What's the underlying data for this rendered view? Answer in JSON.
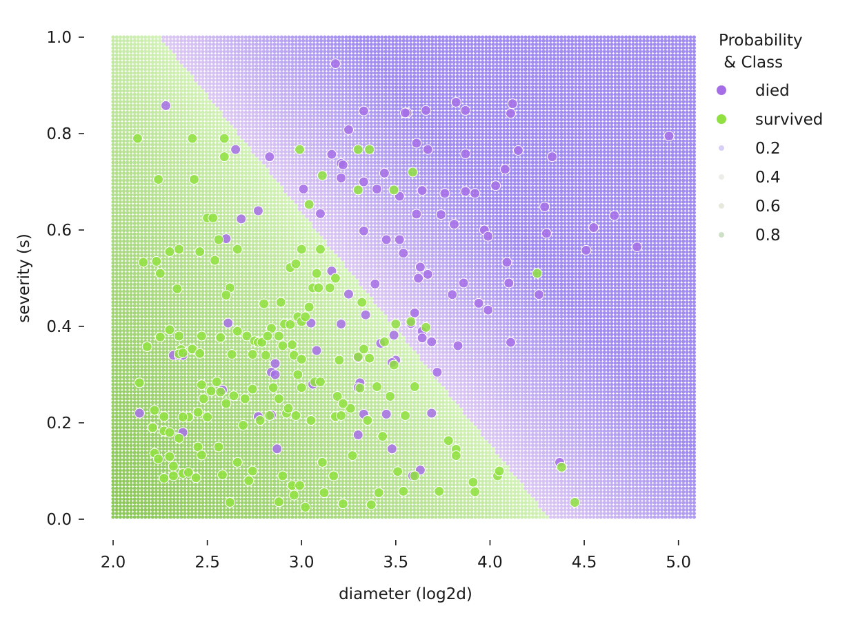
{
  "chart_data": {
    "type": "scatter",
    "title": "",
    "xlabel": "diameter (log2d)",
    "ylabel": "severity (s)",
    "xlim": [
      2.0,
      5.1
    ],
    "ylim": [
      0.0,
      1.0
    ],
    "xticks": [
      "2.0",
      "2.5",
      "3.0",
      "3.5",
      "4.0",
      "4.5",
      "5.0"
    ],
    "xtick_values": [
      2.0,
      2.5,
      3.0,
      3.5,
      4.0,
      4.5,
      5.0
    ],
    "yticks": [
      "0.0",
      "0.2",
      "0.4",
      "0.6",
      "0.8",
      "1.0"
    ],
    "ytick_values": [
      0.0,
      0.2,
      0.4,
      0.6,
      0.8,
      1.0
    ],
    "grid": false,
    "background": {
      "type": "probability_grid",
      "boundary": {
        "description": "p(survived)=0.5 line",
        "points": [
          [
            2.25,
            1.0
          ],
          [
            4.32,
            0.0
          ]
        ]
      },
      "colors": {
        "survived": "#8dc85a",
        "survived_light": "#d3f2b8",
        "died_light": "#dcc8f2",
        "died": "#a08cf0"
      }
    },
    "legend": {
      "title": "Probability\n & Class",
      "title_lines": [
        "Probability",
        " & Class"
      ],
      "placement": "outside-right",
      "classes": [
        {
          "label": "died",
          "color": "#a66ee6"
        },
        {
          "label": "survived",
          "color": "#8fe040"
        }
      ],
      "probabilities": [
        {
          "label": "0.2",
          "color": "#d8d0f4"
        },
        {
          "label": "0.4",
          "color": "#ecece8"
        },
        {
          "label": "0.6",
          "color": "#e6eadc"
        },
        {
          "label": "0.8",
          "color": "#cfe0c8"
        }
      ]
    },
    "series": [
      {
        "name": "died",
        "color": "#a66ee6",
        "points": [
          [
            3.18,
            0.945
          ],
          [
            2.28,
            0.858
          ],
          [
            3.33,
            0.847
          ],
          [
            3.56,
            0.843
          ],
          [
            3.55,
            0.843
          ],
          [
            3.66,
            0.848
          ],
          [
            3.82,
            0.865
          ],
          [
            3.87,
            0.848
          ],
          [
            4.12,
            0.862
          ],
          [
            4.11,
            0.842
          ],
          [
            3.25,
            0.808
          ],
          [
            3.61,
            0.78
          ],
          [
            4.95,
            0.795
          ],
          [
            3.67,
            0.767
          ],
          [
            3.87,
            0.758
          ],
          [
            4.15,
            0.765
          ],
          [
            2.65,
            0.767
          ],
          [
            2.83,
            0.752
          ],
          [
            3.16,
            0.757
          ],
          [
            4.33,
            0.752
          ],
          [
            3.21,
            0.738
          ],
          [
            3.22,
            0.735
          ],
          [
            3.21,
            0.708
          ],
          [
            3.44,
            0.718
          ],
          [
            3.33,
            0.7
          ],
          [
            4.08,
            0.726
          ],
          [
            4.03,
            0.692
          ],
          [
            3.64,
            0.682
          ],
          [
            3.4,
            0.685
          ],
          [
            3.52,
            0.67
          ],
          [
            3.76,
            0.676
          ],
          [
            3.87,
            0.68
          ],
          [
            3.92,
            0.676
          ],
          [
            3.01,
            0.685
          ],
          [
            4.29,
            0.648
          ],
          [
            4.66,
            0.63
          ],
          [
            3.1,
            0.634
          ],
          [
            2.77,
            0.64
          ],
          [
            3.74,
            0.632
          ],
          [
            3.61,
            0.633
          ],
          [
            2.68,
            0.623
          ],
          [
            3.81,
            0.612
          ],
          [
            4.55,
            0.605
          ],
          [
            3.33,
            0.598
          ],
          [
            3.97,
            0.6
          ],
          [
            4.3,
            0.593
          ],
          [
            3.99,
            0.587
          ],
          [
            2.6,
            0.582
          ],
          [
            3.45,
            0.58
          ],
          [
            3.52,
            0.58
          ],
          [
            4.51,
            0.558
          ],
          [
            4.78,
            0.565
          ],
          [
            3.54,
            0.552
          ],
          [
            4.09,
            0.533
          ],
          [
            3.63,
            0.523
          ],
          [
            3.16,
            0.515
          ],
          [
            3.67,
            0.508
          ],
          [
            3.62,
            0.5
          ],
          [
            3.86,
            0.49
          ],
          [
            3.39,
            0.488
          ],
          [
            4.1,
            0.49
          ],
          [
            3.8,
            0.466
          ],
          [
            3.25,
            0.467
          ],
          [
            4.26,
            0.466
          ],
          [
            3.94,
            0.448
          ],
          [
            3.99,
            0.434
          ],
          [
            3.6,
            0.428
          ],
          [
            3.34,
            0.424
          ],
          [
            3.05,
            0.407
          ],
          [
            3.21,
            0.405
          ],
          [
            2.61,
            0.407
          ],
          [
            3.58,
            0.406
          ],
          [
            3.64,
            0.39
          ],
          [
            3.49,
            0.382
          ],
          [
            3.69,
            0.368
          ],
          [
            3.64,
            0.376
          ],
          [
            3.83,
            0.36
          ],
          [
            3.42,
            0.365
          ],
          [
            4.11,
            0.367
          ],
          [
            3.08,
            0.35
          ],
          [
            2.32,
            0.34
          ],
          [
            2.35,
            0.34
          ],
          [
            2.37,
            0.34
          ],
          [
            3.5,
            0.33
          ],
          [
            3.3,
            0.335
          ],
          [
            3.48,
            0.325
          ],
          [
            2.86,
            0.323
          ],
          [
            3.72,
            0.305
          ],
          [
            2.84,
            0.305
          ],
          [
            2.86,
            0.3
          ],
          [
            2.58,
            0.268
          ],
          [
            3.31,
            0.283
          ],
          [
            3.06,
            0.28
          ],
          [
            3.3,
            0.273
          ],
          [
            3.33,
            0.218
          ],
          [
            3.45,
            0.218
          ],
          [
            2.84,
            0.216
          ],
          [
            3.69,
            0.22
          ],
          [
            2.14,
            0.22
          ],
          [
            2.77,
            0.213
          ],
          [
            2.37,
            0.18
          ],
          [
            3.3,
            0.175
          ],
          [
            2.87,
            0.146
          ],
          [
            3.48,
            0.146
          ],
          [
            4.37,
            0.118
          ],
          [
            3.63,
            0.102
          ],
          [
            3.59,
            0.09
          ]
        ]
      },
      {
        "name": "survived",
        "color": "#8fe040",
        "points": [
          [
            2.13,
            0.79
          ],
          [
            2.42,
            0.79
          ],
          [
            2.59,
            0.79
          ],
          [
            2.59,
            0.752
          ],
          [
            2.24,
            0.705
          ],
          [
            2.43,
            0.705
          ],
          [
            3.3,
            0.767
          ],
          [
            3.36,
            0.767
          ],
          [
            2.99,
            0.767
          ],
          [
            3.59,
            0.72
          ],
          [
            3.11,
            0.713
          ],
          [
            3.3,
            0.683
          ],
          [
            3.49,
            0.683
          ],
          [
            3.04,
            0.653
          ],
          [
            2.5,
            0.625
          ],
          [
            2.53,
            0.625
          ],
          [
            3.0,
            0.56
          ],
          [
            3.1,
            0.56
          ],
          [
            2.3,
            0.555
          ],
          [
            2.35,
            0.56
          ],
          [
            2.46,
            0.555
          ],
          [
            2.56,
            0.58
          ],
          [
            2.66,
            0.56
          ],
          [
            2.54,
            0.537
          ],
          [
            2.23,
            0.535
          ],
          [
            2.16,
            0.533
          ],
          [
            2.25,
            0.51
          ],
          [
            3.08,
            0.51
          ],
          [
            3.18,
            0.5
          ],
          [
            2.62,
            0.48
          ],
          [
            2.34,
            0.478
          ],
          [
            3.06,
            0.48
          ],
          [
            3.09,
            0.48
          ],
          [
            3.15,
            0.48
          ],
          [
            2.6,
            0.465
          ],
          [
            3.32,
            0.45
          ],
          [
            3.04,
            0.44
          ],
          [
            2.8,
            0.447
          ],
          [
            2.89,
            0.45
          ],
          [
            2.94,
            0.522
          ],
          [
            2.97,
            0.53
          ],
          [
            2.25,
            0.378
          ],
          [
            2.3,
            0.393
          ],
          [
            2.35,
            0.38
          ],
          [
            2.47,
            0.38
          ],
          [
            2.57,
            0.377
          ],
          [
            2.66,
            0.39
          ],
          [
            2.71,
            0.38
          ],
          [
            2.75,
            0.37
          ],
          [
            2.77,
            0.367
          ],
          [
            2.79,
            0.367
          ],
          [
            2.84,
            0.396
          ],
          [
            2.88,
            0.38
          ],
          [
            2.91,
            0.405
          ],
          [
            2.94,
            0.404
          ],
          [
            2.98,
            0.42
          ],
          [
            3.0,
            0.41
          ],
          [
            3.02,
            0.42
          ],
          [
            2.82,
            0.38
          ],
          [
            2.9,
            0.36
          ],
          [
            2.95,
            0.362
          ],
          [
            2.36,
            0.352
          ],
          [
            2.42,
            0.353
          ],
          [
            2.18,
            0.358
          ],
          [
            2.35,
            0.343
          ],
          [
            2.37,
            0.345
          ],
          [
            2.46,
            0.344
          ],
          [
            2.63,
            0.342
          ],
          [
            2.74,
            0.342
          ],
          [
            2.81,
            0.34
          ],
          [
            2.96,
            0.34
          ],
          [
            3.0,
            0.332
          ],
          [
            3.2,
            0.33
          ],
          [
            3.3,
            0.337
          ],
          [
            3.33,
            0.353
          ],
          [
            3.36,
            0.334
          ],
          [
            3.44,
            0.368
          ],
          [
            3.5,
            0.405
          ],
          [
            3.58,
            0.41
          ],
          [
            3.66,
            0.398
          ],
          [
            3.07,
            0.285
          ],
          [
            3.1,
            0.285
          ],
          [
            2.55,
            0.285
          ],
          [
            2.47,
            0.279
          ],
          [
            2.52,
            0.266
          ],
          [
            2.57,
            0.264
          ],
          [
            2.64,
            0.256
          ],
          [
            2.6,
            0.24
          ],
          [
            2.48,
            0.25
          ],
          [
            2.45,
            0.222
          ],
          [
            2.5,
            0.212
          ],
          [
            2.4,
            0.212
          ],
          [
            2.37,
            0.212
          ],
          [
            2.27,
            0.213
          ],
          [
            2.22,
            0.226
          ],
          [
            2.14,
            0.283
          ],
          [
            2.21,
            0.19
          ],
          [
            2.27,
            0.183
          ],
          [
            2.3,
            0.18
          ],
          [
            2.35,
            0.168
          ],
          [
            2.45,
            0.15
          ],
          [
            2.56,
            0.15
          ],
          [
            2.69,
            0.195
          ],
          [
            2.78,
            0.205
          ],
          [
            2.83,
            0.215
          ],
          [
            2.92,
            0.22
          ],
          [
            2.97,
            0.215
          ],
          [
            3.05,
            0.205
          ],
          [
            3.18,
            0.213
          ],
          [
            3.21,
            0.215
          ],
          [
            3.26,
            0.23
          ],
          [
            3.31,
            0.272
          ],
          [
            3.4,
            0.275
          ],
          [
            3.47,
            0.255
          ],
          [
            3.35,
            0.205
          ],
          [
            3.43,
            0.172
          ],
          [
            3.6,
            0.275
          ],
          [
            3.49,
            0.32
          ],
          [
            3.19,
            0.255
          ],
          [
            3.22,
            0.24
          ],
          [
            2.22,
            0.137
          ],
          [
            2.24,
            0.125
          ],
          [
            2.27,
            0.085
          ],
          [
            2.32,
            0.09
          ],
          [
            2.32,
            0.11
          ],
          [
            2.37,
            0.095
          ],
          [
            2.4,
            0.097
          ],
          [
            2.44,
            0.086
          ],
          [
            2.47,
            0.133
          ],
          [
            2.58,
            0.092
          ],
          [
            2.62,
            0.035
          ],
          [
            2.66,
            0.118
          ],
          [
            2.72,
            0.08
          ],
          [
            2.74,
            0.1
          ],
          [
            2.88,
            0.036
          ],
          [
            2.9,
            0.09
          ],
          [
            2.95,
            0.07
          ],
          [
            2.96,
            0.05
          ],
          [
            2.99,
            0.07
          ],
          [
            3.02,
            0.025
          ],
          [
            3.11,
            0.118
          ],
          [
            3.12,
            0.055
          ],
          [
            3.17,
            0.09
          ],
          [
            3.22,
            0.032
          ],
          [
            3.27,
            0.132
          ],
          [
            3.37,
            0.03
          ],
          [
            3.41,
            0.055
          ],
          [
            3.51,
            0.099
          ],
          [
            3.54,
            0.058
          ],
          [
            3.6,
            0.09
          ],
          [
            3.73,
            0.058
          ],
          [
            3.78,
            0.163
          ],
          [
            3.82,
            0.145
          ],
          [
            3.82,
            0.132
          ],
          [
            3.91,
            0.077
          ],
          [
            3.92,
            0.057
          ],
          [
            4.04,
            0.09
          ],
          [
            4.05,
            0.1
          ],
          [
            4.38,
            0.108
          ],
          [
            4.45,
            0.035
          ],
          [
            4.25,
            0.51
          ],
          [
            3.55,
            0.215
          ],
          [
            2.3,
            0.13
          ],
          [
            2.85,
            0.273
          ],
          [
            2.74,
            0.27
          ],
          [
            2.7,
            0.25
          ],
          [
            2.88,
            0.25
          ],
          [
            2.93,
            0.23
          ],
          [
            3.0,
            0.273
          ],
          [
            2.98,
            0.3
          ]
        ]
      }
    ]
  }
}
